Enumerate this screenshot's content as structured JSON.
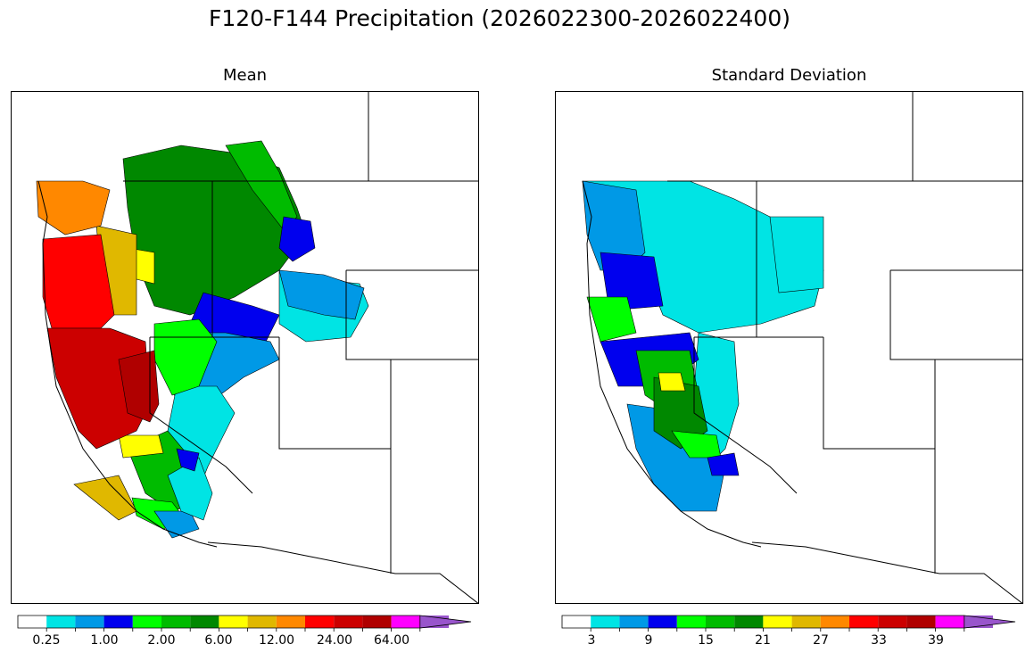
{
  "figure": {
    "title": "F120-F144 Precipitation (2026022300-2026022400)"
  },
  "panels": [
    {
      "title": "Mean",
      "colorbar": {
        "colors": [
          "#ffffff",
          "#00e4e4",
          "#0099e6",
          "#0000ee",
          "#00ff00",
          "#00bb00",
          "#008800",
          "#ffff00",
          "#e0b800",
          "#ff8800",
          "#ff0000",
          "#cc0000",
          "#b00000",
          "#ff00ff",
          "#9955cc"
        ],
        "tick_labels": [
          "0.25",
          "1.00",
          "2.00",
          "6.00",
          "12.00",
          "24.00",
          "64.00"
        ],
        "extend": "max"
      }
    },
    {
      "title": "Standard Deviation",
      "colorbar": {
        "colors": [
          "#ffffff",
          "#00e4e4",
          "#0099e6",
          "#0000ee",
          "#00ff00",
          "#00bb00",
          "#008800",
          "#ffff00",
          "#e0b800",
          "#ff8800",
          "#ff0000",
          "#cc0000",
          "#b00000",
          "#ff00ff",
          "#9955cc"
        ],
        "tick_labels": [
          "3",
          "9",
          "15",
          "21",
          "27",
          "33",
          "39"
        ],
        "extend": "max"
      }
    }
  ]
}
